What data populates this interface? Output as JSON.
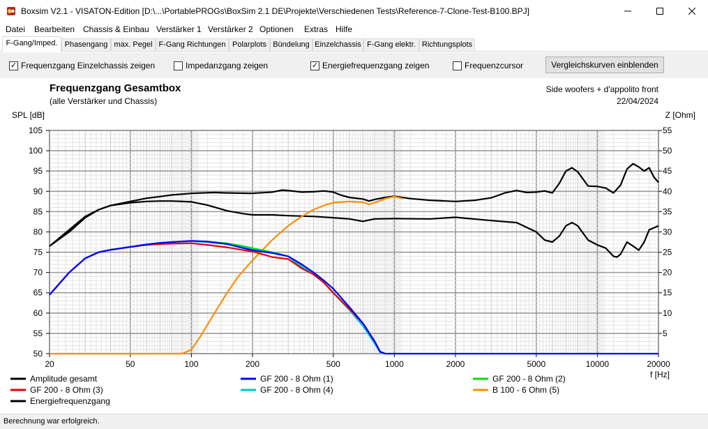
{
  "window": {
    "title": "Boxsim V2.1 - VISATON-Edition [D:\\...\\PortablePROGs\\BoxSim 2.1 DE\\Projekte\\Verschiedenen Tests\\Reference-7-Clone-Test-B100.BPJ]"
  },
  "menu": [
    "Datei",
    "Bearbeiten",
    "Chassis & Einbau",
    "Verstärker 1",
    "Verstärker 2",
    "Optionen",
    "Extras",
    "Hilfe"
  ],
  "tabs": [
    "F-Gang/Imped.",
    "Phasengang",
    "max. Pegel",
    "F-Gang Richtungen",
    "Polarplots",
    "Bündelung",
    "Einzelchassis",
    "F-Gang elektr.",
    "Richtungsplots"
  ],
  "options": [
    {
      "label": "Frequenzgang Einzelchassis zeigen",
      "checked": true
    },
    {
      "label": "Impedanzgang zeigen",
      "checked": false
    },
    {
      "label": "Energiefrequenzgang zeigen",
      "checked": true
    },
    {
      "label": "Frequenzcursor",
      "checked": false
    }
  ],
  "compare_button": "Vergleichskurven einblenden",
  "status": "Berechnung war erfolgreich.",
  "chart_data": {
    "type": "line",
    "title": "Frequenzgang Gesamtbox",
    "subtitle": "(alle Verstärker und Chassis)",
    "annotation": "Side woofers + d'appolito front",
    "date": "22/04/2024",
    "ylabel": "SPL [dB]",
    "y2label": "Z [Ohm]",
    "xlabel": "f [Hz]",
    "xscale": "log",
    "xlim": [
      20,
      20000
    ],
    "ylim": [
      50,
      105
    ],
    "y2lim": [
      0,
      55
    ],
    "xticks": [
      20,
      50,
      100,
      200,
      500,
      1000,
      2000,
      5000,
      10000,
      20000
    ],
    "xtick_labels": [
      "20",
      "50",
      "100",
      "200",
      "500",
      "1000",
      "2000",
      "5000",
      "10000",
      "20000"
    ],
    "yticks": [
      50,
      55,
      60,
      65,
      70,
      75,
      80,
      85,
      90,
      95,
      100,
      105
    ],
    "y2ticks": [
      5,
      10,
      15,
      20,
      25,
      30,
      35,
      40,
      45,
      50,
      55
    ],
    "grid": true,
    "legend_position": "bottom",
    "series": [
      {
        "name": "Amplitude gesamt",
        "color": "#000000",
        "points": [
          [
            20,
            76.5
          ],
          [
            25,
            80
          ],
          [
            30,
            83.5
          ],
          [
            35,
            85.5
          ],
          [
            40,
            86.5
          ],
          [
            50,
            87.2
          ],
          [
            60,
            87.5
          ],
          [
            70,
            87.6
          ],
          [
            80,
            87.6
          ],
          [
            100,
            87.4
          ],
          [
            120,
            86.6
          ],
          [
            150,
            85.2
          ],
          [
            180,
            84.5
          ],
          [
            200,
            84.2
          ],
          [
            250,
            84.2
          ],
          [
            300,
            84
          ],
          [
            400,
            83.8
          ],
          [
            500,
            83.5
          ],
          [
            600,
            83.2
          ],
          [
            700,
            82.6
          ],
          [
            800,
            83.2
          ],
          [
            1000,
            83.3
          ],
          [
            1500,
            83.2
          ],
          [
            2000,
            83.6
          ],
          [
            3000,
            82.8
          ],
          [
            4000,
            82.3
          ],
          [
            5000,
            80
          ],
          [
            5500,
            78
          ],
          [
            6000,
            77.5
          ],
          [
            6500,
            79
          ],
          [
            7000,
            81.5
          ],
          [
            7500,
            82.3
          ],
          [
            8000,
            81.5
          ],
          [
            9000,
            78
          ],
          [
            10000,
            76.8
          ],
          [
            11000,
            76
          ],
          [
            12000,
            74
          ],
          [
            12500,
            73.8
          ],
          [
            13000,
            74.5
          ],
          [
            14000,
            77.5
          ],
          [
            15000,
            76.5
          ],
          [
            16000,
            75.5
          ],
          [
            17000,
            77.5
          ],
          [
            18000,
            80.5
          ],
          [
            20000,
            81.5
          ]
        ]
      },
      {
        "name": "GF 200 - 8 Ohm (1)",
        "color": "#0000ff",
        "points": [
          [
            20,
            64.5
          ],
          [
            25,
            70
          ],
          [
            30,
            73.5
          ],
          [
            35,
            75
          ],
          [
            40,
            75.6
          ],
          [
            50,
            76.3
          ],
          [
            60,
            76.9
          ],
          [
            70,
            77.3
          ],
          [
            80,
            77.5
          ],
          [
            100,
            77.8
          ],
          [
            120,
            77.6
          ],
          [
            150,
            77
          ],
          [
            180,
            76
          ],
          [
            200,
            75.5
          ],
          [
            250,
            74.8
          ],
          [
            300,
            74
          ],
          [
            350,
            72
          ],
          [
            400,
            70
          ],
          [
            450,
            68
          ],
          [
            500,
            66
          ],
          [
            600,
            61.5
          ],
          [
            700,
            57.5
          ],
          [
            800,
            53
          ],
          [
            850,
            50.5
          ],
          [
            900,
            50
          ],
          [
            20000,
            50
          ]
        ]
      },
      {
        "name": "GF 200 - 8 Ohm (2)",
        "color": "#00e000",
        "points": [
          [
            20,
            64.5
          ],
          [
            25,
            70
          ],
          [
            30,
            73.5
          ],
          [
            35,
            75
          ],
          [
            40,
            75.6
          ],
          [
            50,
            76.3
          ],
          [
            60,
            76.9
          ],
          [
            70,
            77.3
          ],
          [
            80,
            77.5
          ],
          [
            100,
            77.7
          ],
          [
            120,
            77.6
          ],
          [
            150,
            77.2
          ],
          [
            180,
            76.5
          ],
          [
            200,
            76
          ],
          [
            250,
            75
          ],
          [
            300,
            74
          ],
          [
            350,
            71.2
          ],
          [
            400,
            69.5
          ],
          [
            450,
            67.5
          ],
          [
            500,
            65
          ],
          [
            600,
            61
          ],
          [
            700,
            57
          ],
          [
            800,
            52.5
          ],
          [
            850,
            50.5
          ],
          [
            900,
            50
          ]
        ]
      },
      {
        "name": "GF 200 - 8 Ohm (3)",
        "color": "#e00000",
        "points": [
          [
            20,
            64.5
          ],
          [
            25,
            70
          ],
          [
            30,
            73.5
          ],
          [
            35,
            75
          ],
          [
            40,
            75.6
          ],
          [
            50,
            76.3
          ],
          [
            60,
            76.8
          ],
          [
            70,
            77
          ],
          [
            80,
            77.1
          ],
          [
            100,
            77.2
          ],
          [
            120,
            76.8
          ],
          [
            150,
            76.2
          ],
          [
            180,
            75.5
          ],
          [
            200,
            75.2
          ],
          [
            250,
            73.8
          ],
          [
            300,
            73.3
          ],
          [
            350,
            71
          ],
          [
            400,
            69.5
          ],
          [
            450,
            67.5
          ],
          [
            500,
            65
          ],
          [
            600,
            61
          ],
          [
            700,
            57.5
          ],
          [
            800,
            53
          ],
          [
            850,
            50.5
          ],
          [
            900,
            50
          ]
        ]
      },
      {
        "name": "GF 200 - 8 Ohm (4)",
        "color": "#00c8c8",
        "points": [
          [
            20,
            64.5
          ],
          [
            25,
            70
          ],
          [
            30,
            73.5
          ],
          [
            35,
            75
          ],
          [
            40,
            75.6
          ],
          [
            50,
            76.3
          ],
          [
            60,
            76.9
          ],
          [
            70,
            77.3
          ],
          [
            80,
            77.5
          ],
          [
            100,
            77.7
          ],
          [
            120,
            77.5
          ],
          [
            150,
            77
          ],
          [
            180,
            76.2
          ],
          [
            200,
            75.7
          ],
          [
            250,
            74.8
          ],
          [
            300,
            74
          ],
          [
            350,
            71.5
          ],
          [
            400,
            69.8
          ],
          [
            450,
            67.5
          ],
          [
            500,
            65
          ],
          [
            600,
            60.8
          ],
          [
            700,
            56.8
          ],
          [
            800,
            52.5
          ],
          [
            850,
            50.3
          ],
          [
            900,
            50
          ]
        ]
      },
      {
        "name": "B 100 - 6 Ohm (5)",
        "color": "#ff8c00",
        "points": [
          [
            20,
            50
          ],
          [
            90,
            50
          ],
          [
            100,
            51
          ],
          [
            110,
            54
          ],
          [
            130,
            60
          ],
          [
            150,
            65
          ],
          [
            170,
            69
          ],
          [
            200,
            73
          ],
          [
            250,
            78
          ],
          [
            300,
            81.5
          ],
          [
            350,
            83.8
          ],
          [
            400,
            85.5
          ],
          [
            450,
            86.5
          ],
          [
            500,
            87.2
          ],
          [
            600,
            87.5
          ],
          [
            700,
            87.3
          ],
          [
            750,
            86.8
          ],
          [
            800,
            87.2
          ],
          [
            900,
            88.2
          ],
          [
            1000,
            88.7
          ],
          [
            1100,
            88.2
          ]
        ]
      },
      {
        "name": "Energiefrequenzgang",
        "color": "#000000",
        "points": [
          [
            20,
            76.5
          ],
          [
            25,
            80.5
          ],
          [
            30,
            83.8
          ],
          [
            35,
            85.5
          ],
          [
            40,
            86.5
          ],
          [
            50,
            87.5
          ],
          [
            60,
            88.3
          ],
          [
            70,
            88.7
          ],
          [
            80,
            89.1
          ],
          [
            100,
            89.5
          ],
          [
            130,
            89.7
          ],
          [
            150,
            89.6
          ],
          [
            200,
            89.5
          ],
          [
            250,
            89.8
          ],
          [
            280,
            90.3
          ],
          [
            300,
            90.2
          ],
          [
            350,
            89.8
          ],
          [
            400,
            89.9
          ],
          [
            450,
            90.1
          ],
          [
            500,
            89.8
          ],
          [
            550,
            89
          ],
          [
            600,
            88.5
          ],
          [
            700,
            88.1
          ],
          [
            750,
            87.6
          ],
          [
            800,
            88
          ],
          [
            900,
            88.5
          ],
          [
            1000,
            88.8
          ],
          [
            1200,
            88.2
          ],
          [
            1500,
            87.8
          ],
          [
            2000,
            87.5
          ],
          [
            2500,
            87.8
          ],
          [
            3000,
            88.4
          ],
          [
            3500,
            89.6
          ],
          [
            4000,
            90.2
          ],
          [
            4500,
            89.7
          ],
          [
            5000,
            89.8
          ],
          [
            5500,
            90.1
          ],
          [
            6000,
            89.6
          ],
          [
            6500,
            92
          ],
          [
            7000,
            95
          ],
          [
            7500,
            95.8
          ],
          [
            8000,
            94.8
          ],
          [
            9000,
            91.3
          ],
          [
            10000,
            91.2
          ],
          [
            11000,
            90.8
          ],
          [
            12000,
            89.6
          ],
          [
            13000,
            91.5
          ],
          [
            14000,
            95.5
          ],
          [
            15000,
            96.8
          ],
          [
            16000,
            96
          ],
          [
            17000,
            95
          ],
          [
            18000,
            95.8
          ],
          [
            19000,
            93.5
          ],
          [
            20000,
            92.2
          ]
        ]
      }
    ]
  }
}
